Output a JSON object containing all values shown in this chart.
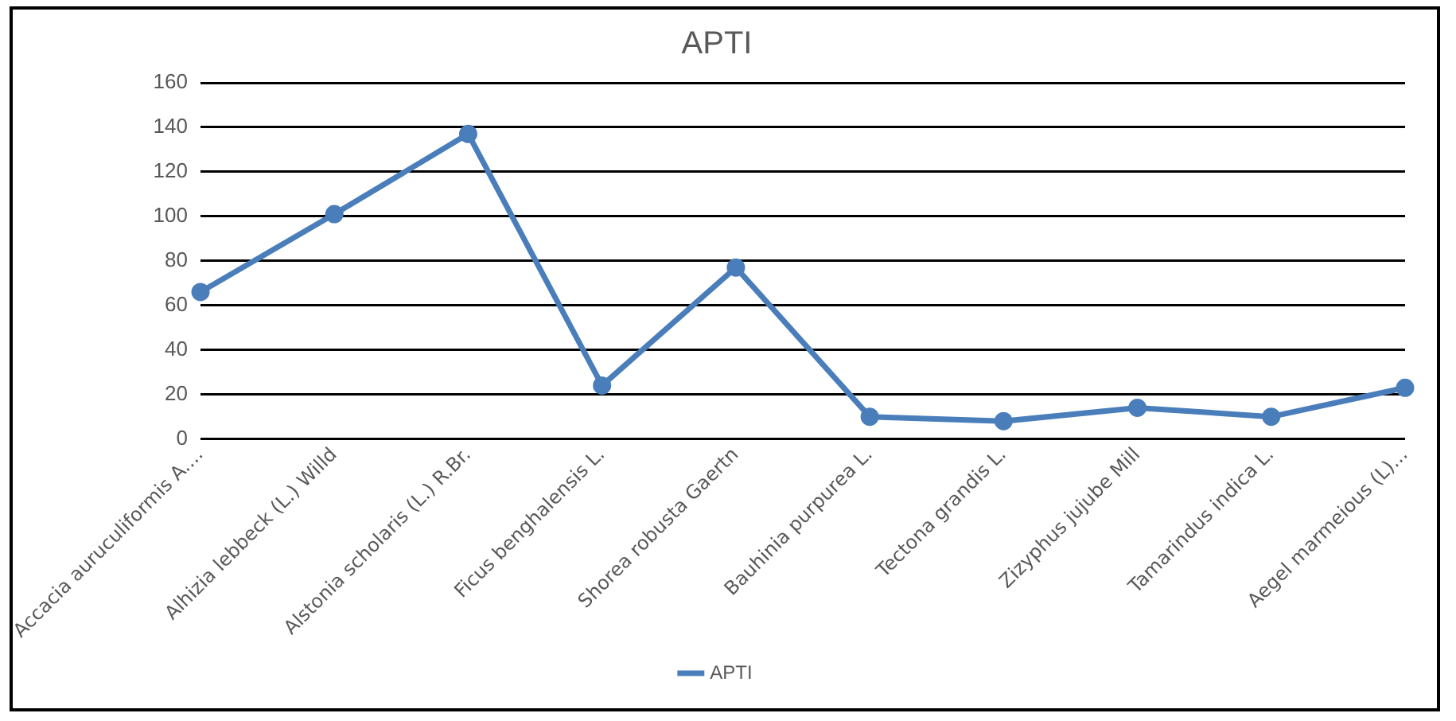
{
  "chart_data": {
    "type": "line",
    "title": "APTI",
    "categories": [
      "Accacia auruculiformis A....",
      "Alhizia lebbeck (L.) Willd",
      "Alstonia scholaris (L.) R.Br.",
      "Ficus benghalensis L.",
      "Shorea robusta Gaertn",
      "Bauhinia purpurea L.",
      "Tectona grandis L.",
      "Zizyphus jujube Mill",
      "Tamarindus indica L.",
      "Aegel marmeious (L)..."
    ],
    "series": [
      {
        "name": "APTI",
        "color": "#4a7ebb",
        "values": [
          66,
          101,
          137,
          24,
          77,
          10,
          8,
          14,
          10,
          23
        ]
      }
    ],
    "ylim": [
      0,
      160
    ],
    "yticks": [
      0,
      20,
      40,
      60,
      80,
      100,
      120,
      140,
      160
    ],
    "grid": "y",
    "legend": "bottom",
    "marker": "circle",
    "line_style": "solid"
  }
}
